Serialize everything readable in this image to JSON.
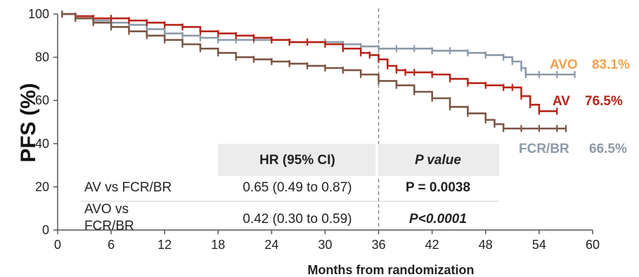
{
  "chart_data": {
    "type": "line",
    "xlabel": "Months from randomization",
    "ylabel": "PFS (%)",
    "xlim": [
      0,
      60
    ],
    "ylim": [
      0,
      100
    ],
    "xticks": [
      0,
      6,
      12,
      18,
      24,
      30,
      36,
      42,
      48,
      54,
      60
    ],
    "yticks": [
      0,
      20,
      40,
      60,
      80,
      100
    ],
    "reference_line_x": 36,
    "series": [
      {
        "name": "AVO",
        "end_label": "AVO",
        "end_value_label": "83.1%",
        "color": "#8c9aa8",
        "label_color": "#f0a050",
        "x": [
          0.5,
          2,
          4,
          6,
          8,
          10,
          12,
          14,
          16,
          18,
          20,
          22,
          24,
          26,
          28,
          30,
          32,
          34,
          36,
          38,
          40,
          42,
          44,
          46,
          48,
          50,
          51,
          52,
          52.5,
          54,
          56,
          58
        ],
        "y": [
          100,
          98,
          97,
          96,
          95,
          93,
          91,
          90,
          89,
          88,
          88,
          88,
          88,
          87,
          87,
          87,
          86,
          85,
          84,
          84,
          84,
          83,
          83,
          82,
          81,
          80,
          78,
          75,
          72,
          72,
          72,
          72
        ]
      },
      {
        "name": "AV",
        "end_label": "AV",
        "end_value_label": "76.5%",
        "color": "#b82418",
        "label_color": "#b82418",
        "x": [
          0.5,
          2,
          4,
          6,
          8,
          10,
          12,
          14,
          16,
          18,
          20,
          22,
          24,
          26,
          28,
          30,
          32,
          34,
          35,
          36,
          37,
          38,
          39,
          40,
          42,
          44,
          46,
          48,
          50,
          51,
          52,
          53,
          54,
          56
        ],
        "y": [
          100,
          99,
          98,
          98,
          97,
          96,
          95,
          94,
          92,
          91,
          90,
          89,
          88,
          87,
          87,
          86,
          84,
          82,
          81,
          79,
          76,
          74,
          73,
          73,
          72,
          70,
          68,
          67,
          66,
          66,
          62,
          58,
          55,
          55
        ]
      },
      {
        "name": "FCR/BR",
        "end_label": "FCR/BR",
        "end_value_label": "66.5%",
        "color": "#7b5545",
        "label_color": "#8c9aa8",
        "x": [
          0.5,
          2,
          4,
          6,
          8,
          10,
          12,
          14,
          16,
          18,
          20,
          22,
          24,
          26,
          28,
          30,
          32,
          34,
          36,
          38,
          40,
          42,
          44,
          46,
          48,
          49,
          50,
          52,
          54,
          56,
          57
        ],
        "y": [
          100,
          98,
          96,
          94,
          92,
          90,
          88,
          86,
          84,
          82,
          80,
          79,
          78,
          77,
          76,
          75,
          74,
          72,
          69,
          67,
          64,
          61,
          57,
          54,
          51,
          49,
          47,
          47,
          47,
          47,
          47
        ]
      }
    ],
    "table": {
      "headers": [
        "",
        "HR (95% CI)",
        "P value"
      ],
      "rows": [
        {
          "label": "AV vs FCR/BR",
          "hr": "0.65 (0.49 to 0.87)",
          "p": "P = 0.0038"
        },
        {
          "label_line1": "AVO vs",
          "label_line2": "FCR/BR",
          "hr": "0.42 (0.30 to 0.59)",
          "p": "P<0.0001"
        }
      ]
    }
  }
}
